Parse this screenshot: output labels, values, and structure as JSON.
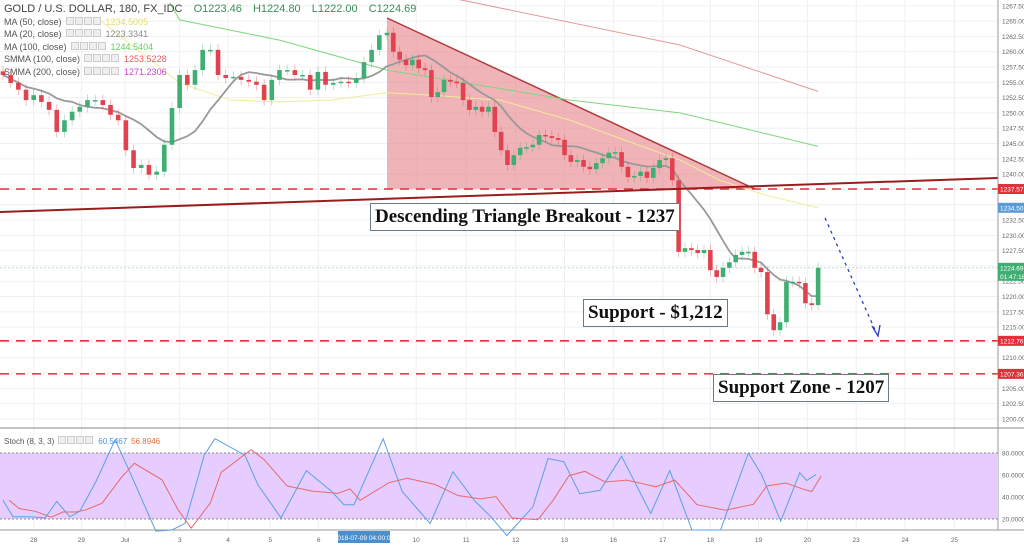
{
  "header": {
    "title": "GOLD / U.S. DOLLAR, 180, FX_IDC",
    "open": "O1223.46",
    "high": "H1224.80",
    "low": "L1222.00",
    "close": "C1224.69"
  },
  "indicators": [
    {
      "label": "MA (50, close)",
      "value": "1234.5005",
      "color": "#e8e06a"
    },
    {
      "label": "MA (20, close)",
      "value": "1223.3341",
      "color": "#8c8c8c"
    },
    {
      "label": "MA (100, close)",
      "value": "1244.5404",
      "color": "#63d163"
    },
    {
      "label": "SMMA (100, close)",
      "value": "1253.5228",
      "color": "#e06060"
    },
    {
      "label": "SMMA (200, close)",
      "value": "1271.2306",
      "color": "#d040d0"
    }
  ],
  "stoch_legend": {
    "label": "Stoch (8, 3, 3)",
    "k": "60.5467",
    "d": "56.8946",
    "k_color": "#4a90e2",
    "d_color": "#e05050"
  },
  "annotations": {
    "breakout": "Descending Triangle Breakout - 1237",
    "support": "Support - $1,212",
    "support_zone": "Support Zone - 1207"
  },
  "colors": {
    "up": "#3fae72",
    "down": "#e0434f",
    "triangle": "#e88a90",
    "trendline": "#9b1c1c",
    "level": "#e0303a",
    "arrow": "#2a3fbf",
    "stoch_band": "#e6ccff"
  },
  "chart_data": {
    "type": "candlestick",
    "ylim": [
      1198.5,
      1268.5
    ],
    "price_ticks": [
      "1267.50",
      "1265.00",
      "1262.50",
      "1260.00",
      "1257.50",
      "1255.00",
      "1252.50",
      "1250.00",
      "1247.50",
      "1245.00",
      "1242.50",
      "1240.00",
      "1232.50",
      "1230.00",
      "1227.50",
      "1222.50",
      "1220.00",
      "1217.50",
      "1215.00",
      "1210.00",
      "1205.00",
      "1202.50",
      "1200.00"
    ],
    "price_labels": [
      {
        "value": 1237.57,
        "text": "1237.57",
        "color": "#e0303a"
      },
      {
        "value": 1234.5,
        "text": "1234.50",
        "color": "#5b9bd5"
      },
      {
        "value": 1224.69,
        "text": "1224.69",
        "sub": "01:47:18",
        "color": "#3fae72"
      },
      {
        "value": 1212.76,
        "text": "1212.76",
        "color": "#e0303a"
      },
      {
        "value": 1207.36,
        "text": "1207.36",
        "color": "#e0303a"
      }
    ],
    "levels": [
      1237.57,
      1212.76,
      1207.36
    ],
    "date_ticks": [
      {
        "label": "28",
        "bar": 4
      },
      {
        "label": "29",
        "bar": 10.2
      },
      {
        "label": "Jul",
        "bar": 15.9
      },
      {
        "label": "3",
        "bar": 23
      },
      {
        "label": "4",
        "bar": 29.3
      },
      {
        "label": "5",
        "bar": 34.8
      },
      {
        "label": "6",
        "bar": 41.1
      },
      {
        "label": "10",
        "bar": 54.6
      },
      {
        "label": "11",
        "bar": 62.5
      },
      {
        "label": "12",
        "bar": 70.3
      },
      {
        "label": "13",
        "bar": 78
      },
      {
        "label": "16",
        "bar": 85.7
      },
      {
        "label": "17",
        "bar": 93.5
      },
      {
        "label": "18",
        "bar": 101
      },
      {
        "label": "19",
        "bar": 108.6
      },
      {
        "label": "20",
        "bar": 116.3
      },
      {
        "label": "23",
        "bar": 124
      },
      {
        "label": "24",
        "bar": 131.7
      },
      {
        "label": "25",
        "bar": 139.5
      }
    ],
    "crosshair_date": {
      "label": "2018-07-09 04:00:00",
      "bar": 47
    },
    "closes": [
      1256.2,
      1254.9,
      1253.8,
      1252.1,
      1252.9,
      1251.8,
      1250.5,
      1246.9,
      1248.8,
      1250.2,
      1251.0,
      1252.1,
      1252.1,
      1251.3,
      1249.7,
      1248.8,
      1243.9,
      1241.0,
      1241.5,
      1239.9,
      1240.4,
      1244.8,
      1250.8,
      1256.2,
      1254.6,
      1257.0,
      1260.3,
      1260.3,
      1256.2,
      1255.7,
      1255.9,
      1255.4,
      1255.1,
      1254.6,
      1252.1,
      1255.4,
      1257.0,
      1257.0,
      1256.2,
      1256.2,
      1253.8,
      1256.7,
      1254.6,
      1254.9,
      1255.1,
      1254.9,
      1255.7,
      1258.3,
      1260.3,
      1262.7,
      1263.1,
      1260.0,
      1258.7,
      1257.8,
      1258.7,
      1257.3,
      1257.0,
      1252.6,
      1253.4,
      1255.4,
      1255.1,
      1254.9,
      1252.1,
      1250.5,
      1251.0,
      1250.2,
      1251.0,
      1246.9,
      1243.9,
      1241.5,
      1243.1,
      1244.3,
      1244.4,
      1244.8,
      1246.4,
      1246.2,
      1245.9,
      1245.6,
      1243.1,
      1242.0,
      1242.3,
      1241.2,
      1240.8,
      1241.8,
      1242.6,
      1243.5,
      1243.6,
      1241.2,
      1239.5,
      1239.7,
      1240.4,
      1239.4,
      1241.0,
      1242.3,
      1242.6,
      1239.0,
      1227.3,
      1227.9,
      1227.6,
      1227.1,
      1227.6,
      1224.3,
      1223.2,
      1224.7,
      1225.6,
      1226.8,
      1227.3,
      1227.3,
      1224.7,
      1224.0,
      1217.1,
      1214.5,
      1215.8,
      1222.4,
      1222.4,
      1222.2,
      1218.9,
      1218.6,
      1224.69
    ],
    "ma50": [
      [
        12.6,
        1265.2
      ],
      [
        23,
        1254.9
      ],
      [
        29.6,
        1252.1
      ],
      [
        36,
        1251.8
      ],
      [
        42.6,
        1252.1
      ],
      [
        50,
        1253.3
      ],
      [
        56.8,
        1252.9
      ],
      [
        67.8,
        1252.1
      ],
      [
        78.9,
        1248.8
      ],
      [
        96.2,
        1242.3
      ],
      [
        102.5,
        1239.0
      ],
      [
        109.6,
        1236.6
      ],
      [
        118,
        1234.5
      ]
    ],
    "ma100": [
      [
        21.7,
        1268.0
      ],
      [
        23,
        1265.2
      ],
      [
        36,
        1261.9
      ],
      [
        50,
        1257.0
      ],
      [
        78.9,
        1252.1
      ],
      [
        96.2,
        1250.0
      ],
      [
        118,
        1244.54
      ]
    ],
    "smma100": [
      [
        61.5,
        1268.5
      ],
      [
        96.2,
        1261.1
      ],
      [
        118,
        1253.52
      ]
    ],
    "stoch": {
      "ticks": [
        "80.0000",
        "60.0000",
        "40.0000",
        "20.0000"
      ],
      "band": [
        20,
        80
      ],
      "k": [
        [
          0,
          37
        ],
        [
          1.3,
          22
        ],
        [
          3.4,
          22
        ],
        [
          5.5,
          21
        ],
        [
          7,
          36
        ],
        [
          8.7,
          22
        ],
        [
          10,
          27
        ],
        [
          12.1,
          54
        ],
        [
          14.6,
          92
        ],
        [
          16.3,
          66
        ],
        [
          19.9,
          9
        ],
        [
          22,
          10
        ],
        [
          23.7,
          16
        ],
        [
          26.2,
          78
        ],
        [
          27.6,
          93
        ],
        [
          31.5,
          78
        ],
        [
          33.2,
          51
        ],
        [
          36.2,
          21
        ],
        [
          39.5,
          64
        ],
        [
          42.8,
          45
        ],
        [
          44.4,
          33
        ],
        [
          45.7,
          33
        ],
        [
          49.5,
          93
        ],
        [
          52.4,
          45
        ],
        [
          56.8,
          16
        ],
        [
          60.4,
          63
        ],
        [
          63.9,
          36
        ],
        [
          66.4,
          22
        ],
        [
          68.9,
          5
        ],
        [
          73,
          31
        ],
        [
          75.4,
          75
        ],
        [
          77.9,
          72
        ],
        [
          80.4,
          43
        ],
        [
          83.6,
          46
        ],
        [
          87,
          77
        ],
        [
          91.6,
          25
        ],
        [
          94.6,
          64
        ],
        [
          98.1,
          10
        ],
        [
          102.6,
          10
        ],
        [
          107,
          80
        ],
        [
          109.1,
          60
        ],
        [
          112.1,
          18
        ],
        [
          115.1,
          62
        ],
        [
          116.2,
          55
        ],
        [
          117.7,
          60.5
        ]
      ]
    }
  }
}
